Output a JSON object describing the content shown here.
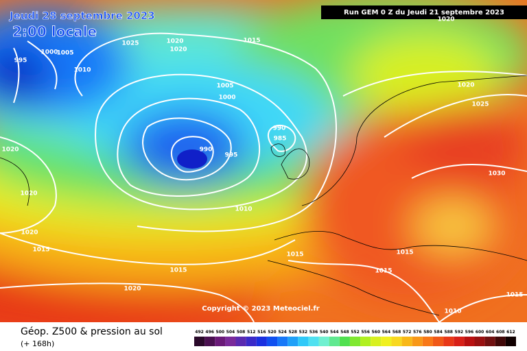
{
  "header": {
    "date": "Jeudi 28 septembre 2023",
    "time": "2:00 locale",
    "run": "Run GEM 0 Z du Jeudi 21 septembre 2023"
  },
  "copyright": "Copyright © 2023 Meteociel.fr",
  "footer": {
    "title": "Géop. Z500 & pression au sol",
    "lead": "(+ 168h)"
  },
  "isobar_labels": [
    995,
    1000,
    1005,
    1010,
    1025,
    1020,
    1020,
    1015,
    1020,
    1005,
    1000,
    990,
    985,
    990,
    995,
    1020,
    1025,
    1030,
    1020,
    1020,
    1020,
    1015,
    1010,
    1015,
    1015,
    1015,
    1015,
    1020,
    1010,
    1015
  ],
  "legend": {
    "levels": [
      492,
      496,
      500,
      504,
      508,
      512,
      516,
      520,
      524,
      528,
      532,
      536,
      540,
      544,
      548,
      552,
      556,
      560,
      564,
      568,
      572,
      576,
      580,
      584,
      588,
      592,
      596,
      600,
      604,
      608,
      612
    ],
    "colors": [
      "#2a0a2a",
      "#4a1050",
      "#6a1a78",
      "#7a2a9a",
      "#5a2ab0",
      "#3a2ac8",
      "#1a30e0",
      "#1050f0",
      "#1878f8",
      "#20a0f8",
      "#30c8f8",
      "#50e0f0",
      "#70f0d0",
      "#60e890",
      "#50e050",
      "#80e830",
      "#b0f020",
      "#d8f020",
      "#f0f020",
      "#f8d820",
      "#f8b818",
      "#f89818",
      "#f87818",
      "#f05818",
      "#e83818",
      "#d82018",
      "#b81010",
      "#981010",
      "#701010",
      "#400808",
      "#100000"
    ]
  }
}
